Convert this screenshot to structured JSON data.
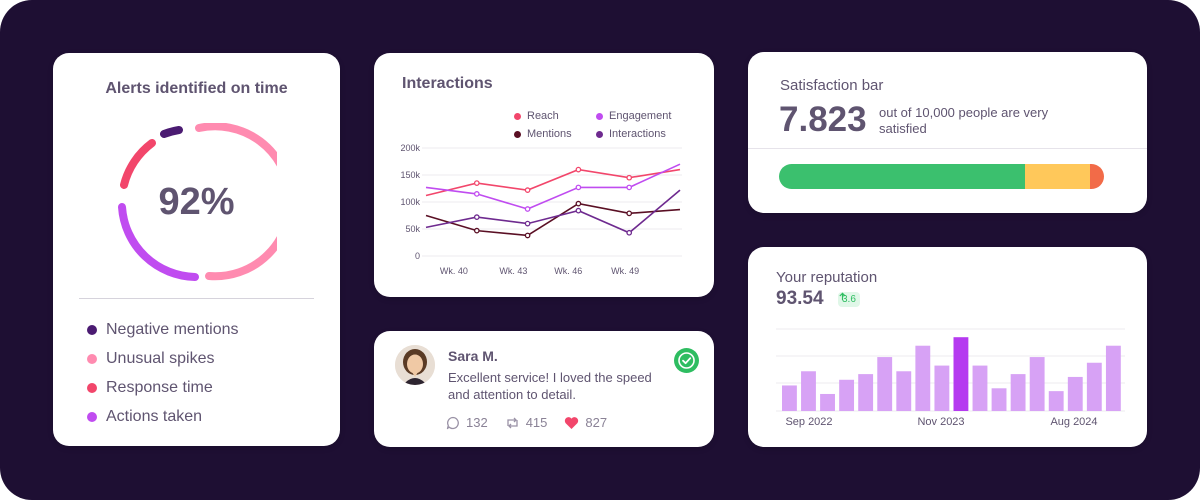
{
  "alerts": {
    "title": "Alerts identified on time",
    "percent": "92%",
    "legend": [
      {
        "label": "Negative mentions",
        "color": "#4b1b72"
      },
      {
        "label": "Unusual spikes",
        "color": "#ff8bb0"
      },
      {
        "label": "Response time",
        "color": "#f2466b"
      },
      {
        "label": "Actions taken",
        "color": "#c04cf0"
      }
    ]
  },
  "interactions": {
    "title": "Interactions",
    "legend": [
      {
        "label": "Reach",
        "color": "#f2466b"
      },
      {
        "label": "Engagement",
        "color": "#c04cf0"
      },
      {
        "label": "Mentions",
        "color": "#5a0f24"
      },
      {
        "label": "Interactions",
        "color": "#6e2a8f"
      }
    ]
  },
  "chart_data": [
    {
      "type": "line",
      "title": "Interactions",
      "x_tick_labels": [
        "Wk. 40",
        "Wk. 43",
        "Wk. 46",
        "Wk. 49"
      ],
      "y_tick_labels": [
        "0",
        "50k",
        "100k",
        "150k",
        "200k"
      ],
      "ylim": [
        0,
        200000
      ],
      "grid": true,
      "legend_position": "top-right",
      "series": [
        {
          "name": "Reach",
          "color": "#f2466b",
          "values": [
            112000,
            135000,
            122000,
            160000,
            145000,
            160000
          ]
        },
        {
          "name": "Engagement",
          "color": "#c04cf0",
          "values": [
            127000,
            115000,
            87000,
            127000,
            127000,
            170000
          ]
        },
        {
          "name": "Mentions",
          "color": "#5a0f24",
          "values": [
            75000,
            47000,
            38000,
            97000,
            79000,
            86000
          ]
        },
        {
          "name": "Interactions",
          "color": "#6e2a8f",
          "values": [
            53000,
            72000,
            60000,
            84000,
            43000,
            122000
          ]
        }
      ]
    },
    {
      "type": "bar",
      "title": "Your reputation",
      "x_tick_labels": [
        "Sep 2022",
        "Nov 2023",
        "Aug 2024"
      ],
      "values": [
        45,
        70,
        30,
        55,
        65,
        95,
        70,
        115,
        80,
        130,
        80,
        40,
        65,
        95,
        35,
        60,
        85,
        115
      ],
      "highlight_index": 9,
      "color": "#d7a2f5",
      "highlight_color": "#b53af0",
      "grid": true
    }
  ],
  "review": {
    "name": "Sara M.",
    "text": "Excellent service! I loved the speed and attention to detail.",
    "comments": "132",
    "reposts": "415",
    "likes": "827"
  },
  "satisfaction": {
    "title": "Satisfaction bar",
    "value": "7.823",
    "desc": "out of 10,000 people are very satisfied",
    "segments": [
      {
        "fraction": 0.757,
        "color": "#3bc06e"
      },
      {
        "fraction": 0.2,
        "color": "#ffc85a"
      },
      {
        "fraction": 0.043,
        "color": "#f26b48"
      }
    ]
  },
  "reputation": {
    "title": "Your reputation",
    "value": "93.54",
    "delta": "3.6"
  }
}
